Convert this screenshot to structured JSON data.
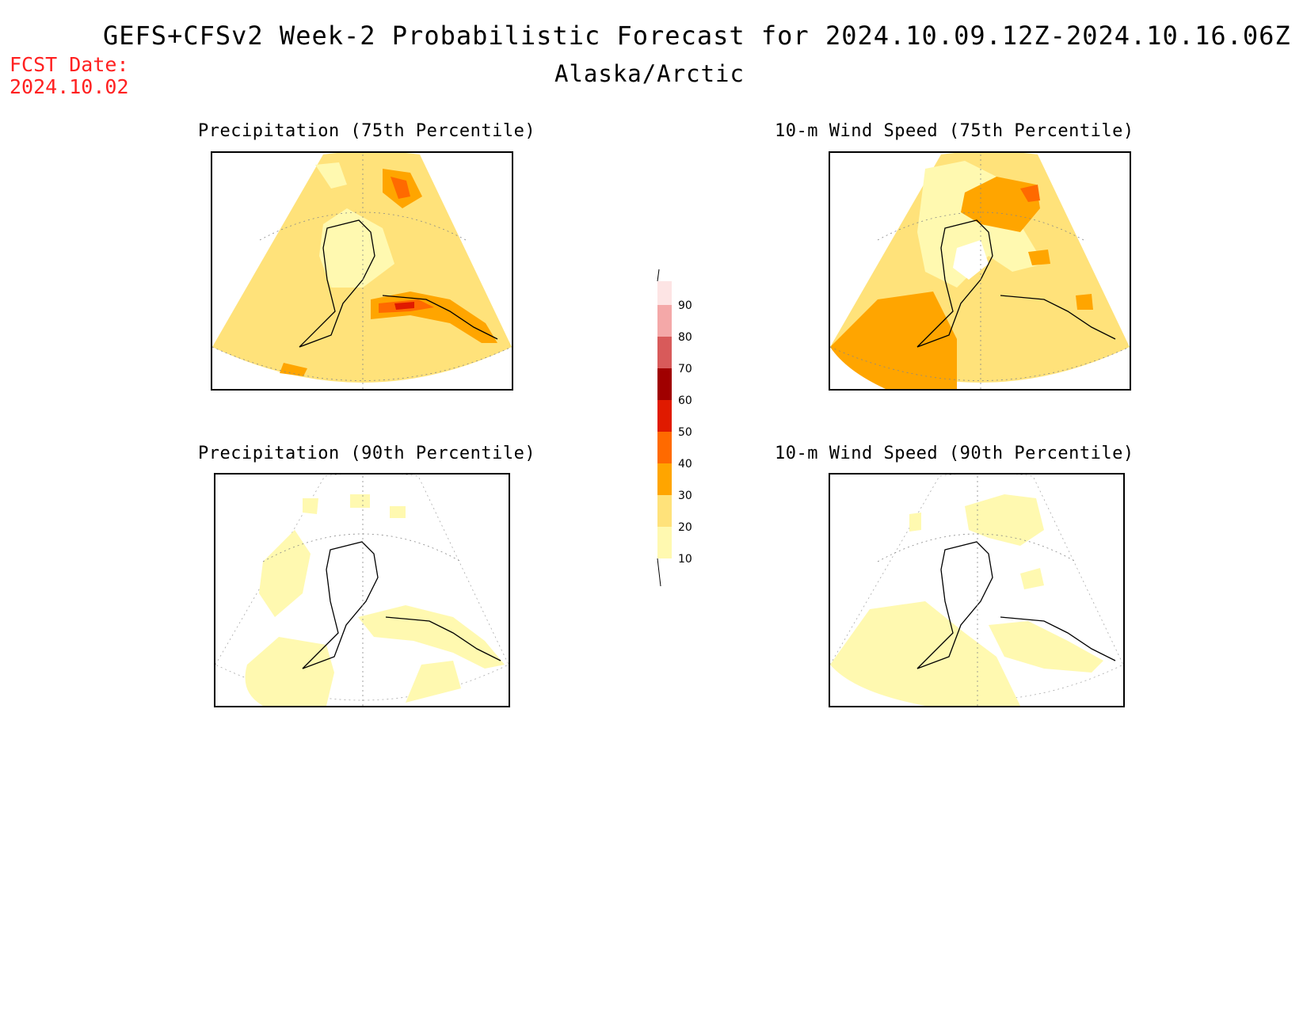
{
  "header": {
    "title": "GEFS+CFSv2 Week-2 Probabilistic Forecast for 2024.10.09.12Z-2024.10.16.06Z",
    "region": "Alaska/Arctic",
    "fcst_label": "FCST Date:",
    "fcst_date": "2024.10.02",
    "fcst_color": "#ff2020"
  },
  "panels": [
    {
      "id": "precip75",
      "title": "Precipitation (75th Percentile)",
      "level": "high"
    },
    {
      "id": "wind75",
      "title": "10-m Wind Speed (75th Percentile)",
      "level": "high"
    },
    {
      "id": "precip90",
      "title": "Precipitation (90th Percentile)",
      "level": "low"
    },
    {
      "id": "wind90",
      "title": "10-m Wind Speed (90th Percentile)",
      "level": "low"
    }
  ],
  "colorbar": {
    "ticks": [
      "90",
      "80",
      "70",
      "60",
      "50",
      "40",
      "30",
      "20",
      "10"
    ],
    "colors": {
      "10-20": "#fff9b0",
      "20-30": "#ffe27a",
      "30-40": "#ffa500",
      "40-50": "#ff6a00",
      "50-60": "#e01a00",
      "60-70": "#a00000",
      "70-80": "#d85a5a",
      "80-90": "#f4a8a8",
      "90-100": "#fde4e4"
    }
  }
}
